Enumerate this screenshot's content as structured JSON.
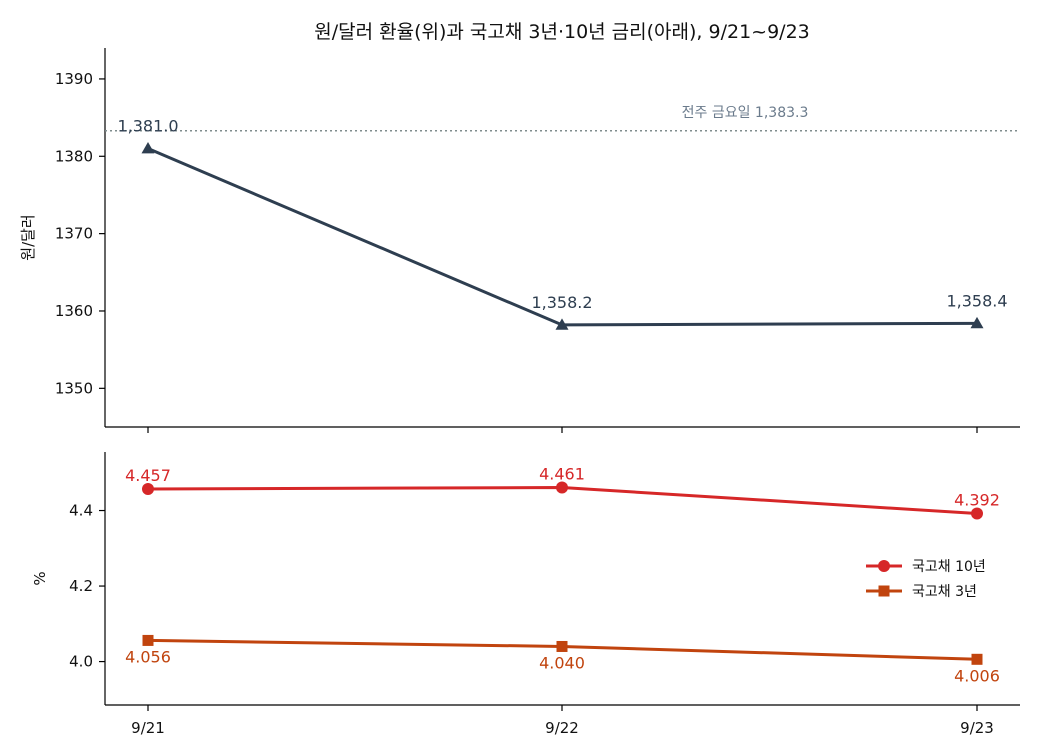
{
  "chart_data": {
    "type": "line",
    "title": "원/달러 환율(위)과 국고채 3년·10년 금리(아래), 9/21~9/23",
    "categories": [
      "9/21",
      "9/22",
      "9/23"
    ],
    "panels": [
      {
        "id": "fx",
        "ylabel": "원/달러",
        "ylim": [
          1345,
          1394
        ],
        "yticks": [
          1350,
          1360,
          1370,
          1380,
          1390
        ],
        "series": [
          {
            "values": [
              1381.0,
              1358.2,
              1358.4
            ],
            "labels": [
              "1,381.0",
              "1,358.2",
              "1,358.4"
            ],
            "color": "#2e3e50",
            "marker": "triangle"
          }
        ],
        "reference": {
          "value": 1383.3,
          "label": "전주 금요일 1,383.3",
          "color": "#6b7b8c"
        }
      },
      {
        "id": "rates",
        "ylabel": "%",
        "ylim": [
          3.885,
          4.555
        ],
        "yticks": [
          4.0,
          4.2,
          4.4
        ],
        "ytick_labels": [
          "4.0",
          "4.2",
          "4.4"
        ],
        "legend_position": "right",
        "series": [
          {
            "name": "국고채 10년",
            "values": [
              4.457,
              4.461,
              4.392
            ],
            "labels": [
              "4.457",
              "4.461",
              "4.392"
            ],
            "color": "#d62728",
            "marker": "circle",
            "label_side": "above"
          },
          {
            "name": "국고채 3년",
            "values": [
              4.056,
              4.04,
              4.006
            ],
            "labels": [
              "4.056",
              "4.040",
              "4.006"
            ],
            "color": "#c1440e",
            "marker": "square",
            "label_side": "below"
          }
        ]
      }
    ]
  }
}
